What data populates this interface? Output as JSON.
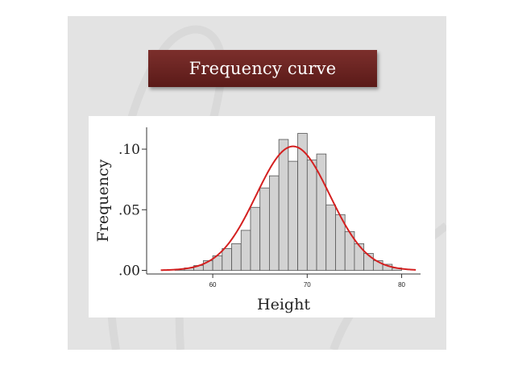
{
  "slide": {
    "title": "Frequency curve"
  },
  "chart_data": {
    "type": "bar",
    "title": "",
    "xlabel": "Height",
    "ylabel": "Frequency",
    "bin_width": 1,
    "bin_starts": [
      56,
      57,
      58,
      59,
      60,
      61,
      62,
      63,
      64,
      65,
      66,
      67,
      68,
      69,
      70,
      71,
      72,
      73,
      74,
      75,
      76,
      77,
      78,
      79
    ],
    "values": [
      0.001,
      0.002,
      0.004,
      0.008,
      0.012,
      0.018,
      0.022,
      0.033,
      0.052,
      0.068,
      0.078,
      0.108,
      0.09,
      0.113,
      0.091,
      0.096,
      0.054,
      0.046,
      0.032,
      0.022,
      0.014,
      0.008,
      0.005,
      0.002
    ],
    "curve": {
      "mean": 68.5,
      "sd": 3.9,
      "xrange": [
        54.5,
        81.5
      ]
    },
    "xlim": [
      53,
      82
    ],
    "ylim": [
      -0.003,
      0.118
    ],
    "xticks": [
      60,
      70,
      80
    ],
    "yticks": [
      0.0,
      0.05,
      0.1
    ],
    "ytick_labels": [
      ".00",
      ".05",
      ".10"
    ],
    "colors": {
      "bar_fill": "#d2d2d2",
      "bar_stroke": "#555555",
      "curve": "#d42020"
    },
    "grid": false
  }
}
